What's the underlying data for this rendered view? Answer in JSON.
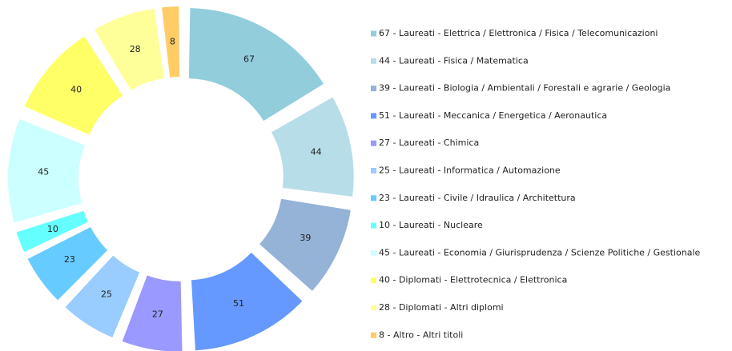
{
  "chart_data": {
    "type": "donut",
    "categories": [
      "67 - Laureati - Elettrica / Elettronica / Fisica / Telecomunicazioni",
      "44 - Laureati - Fisica / Matematica",
      "39 - Laureati - Biologia / Ambientali / Forestali e agrarie / Geologia",
      "51 - Laureati - Meccanica / Energetica / Aeronautica",
      "27 - Laureati - Chimica",
      "25 - Laureati - Informatica / Automazione",
      "23 - Laureati - Civile / Idraulica / Architettura",
      "10 - Laureati - Nucleare",
      "45 - Laureati - Economia / Giurisprudenza / Scienze Politiche / Gestionale",
      "40 - Diplomati - Elettrotecnica / Elettronica",
      "28 - Diplomati - Altri diplomi",
      "8 - Altro - Altri titoli"
    ],
    "values": [
      67,
      44,
      39,
      51,
      27,
      25,
      23,
      10,
      45,
      40,
      28,
      8
    ],
    "colors": [
      "#92cddc",
      "#b7dde8",
      "#95b3d7",
      "#6699ff",
      "#9999ff",
      "#99ccff",
      "#66ccff",
      "#66ffff",
      "#ccffff",
      "#ffff66",
      "#ffff99",
      "#ffcc66"
    ],
    "legend": "right"
  }
}
